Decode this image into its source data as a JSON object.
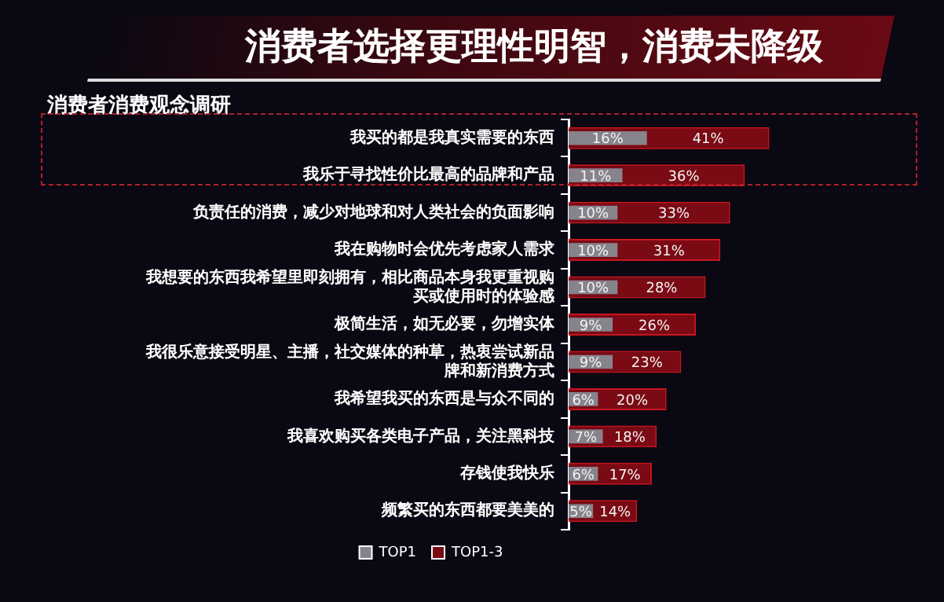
{
  "chart_data": {
    "type": "bar",
    "orientation": "horizontal",
    "title": "消费者选择更理性明智，消费未降级",
    "subtitle": "消费者消费观念调研",
    "categories": [
      "我买的都是我真实需要的东西",
      "我乐于寻找性价比最高的品牌和产品",
      "负责任的消费，减少对地球和对人类社会的负面影响",
      "我在购物时会优先考虑家人需求",
      "我想要的东西我希望里即刻拥有，相比商品本身我更重视购买或使用时的体验感",
      "极简生活，如无必要，勿增实体",
      "我很乐意接受明星、主播，社交媒体的种草，热衷尝试新品牌和新消费方式",
      "我希望我买的东西是与众不同的",
      "我喜欢购买各类电子产品，关注黑科技",
      "存钱使我快乐",
      "频繁买的东西都要美美的"
    ],
    "series": [
      {
        "name": "TOP1",
        "color": "#87838c",
        "values": [
          16,
          11,
          10,
          10,
          10,
          9,
          9,
          6,
          7,
          6,
          5
        ],
        "value_labels": [
          "16%",
          "11%",
          "10%",
          "10%",
          "10%",
          "9%",
          "9%",
          "6%",
          "7%",
          "6%",
          "5%"
        ]
      },
      {
        "name": "TOP1-3",
        "color": "#7a0a14",
        "values": [
          41,
          36,
          33,
          31,
          28,
          26,
          23,
          20,
          18,
          17,
          14
        ],
        "value_labels": [
          "41%",
          "36%",
          "33%",
          "31%",
          "28%",
          "26%",
          "23%",
          "20%",
          "18%",
          "17%",
          "14%"
        ]
      }
    ],
    "legend": "bottom"
  }
}
